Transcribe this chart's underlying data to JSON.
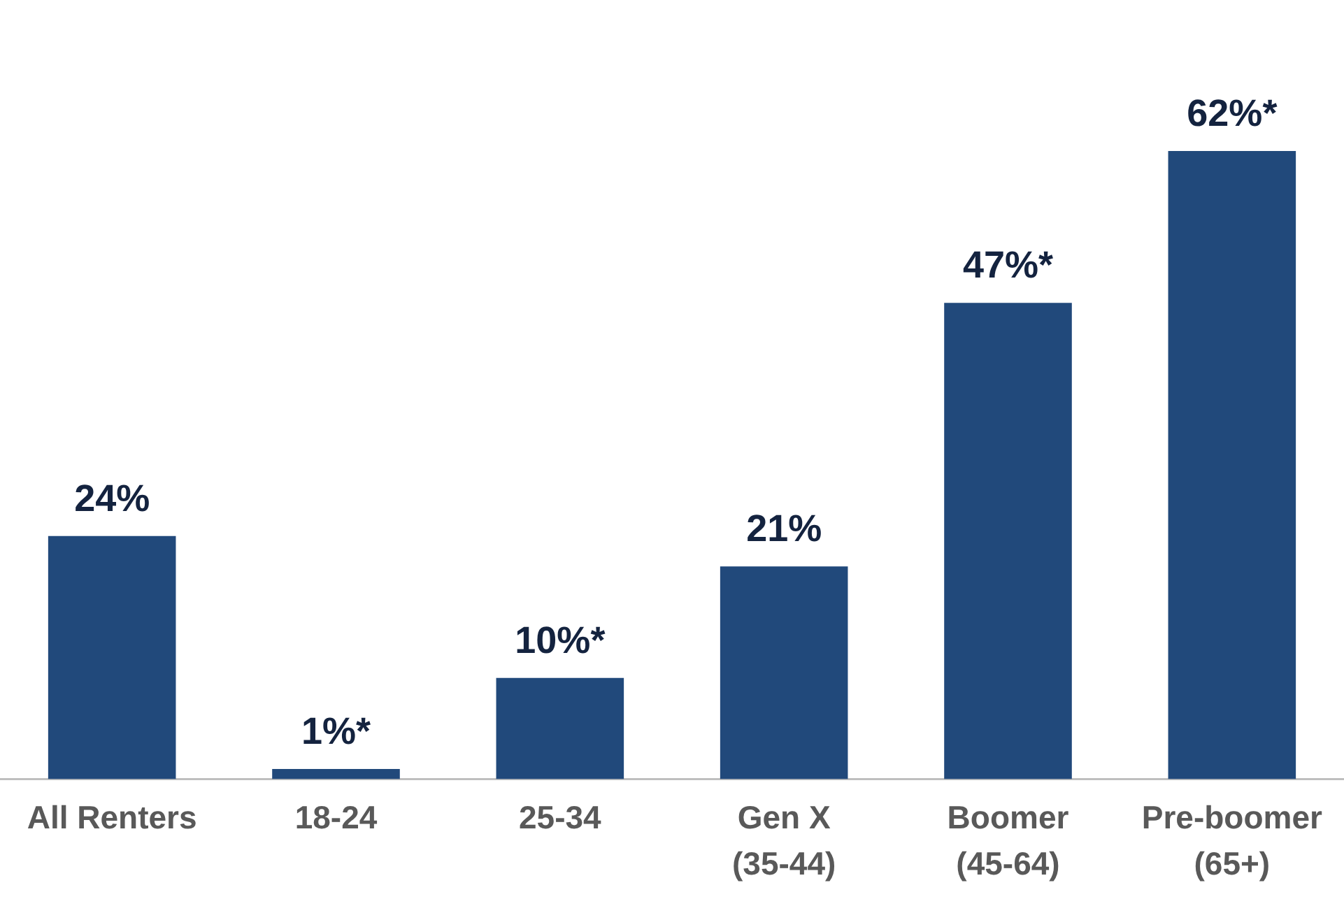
{
  "chart_data": {
    "type": "bar",
    "categories": [
      "All Renters",
      "18-24",
      "25-34",
      "Gen X (35-44)",
      "Boomer (45-64)",
      "Pre-boomer (65+)"
    ],
    "values": [
      24,
      1,
      10,
      21,
      47,
      62
    ],
    "value_labels": [
      "24%",
      "1%*",
      "10%*",
      "21%",
      "47%*",
      "62%*"
    ],
    "color": "#21497b",
    "grid": false,
    "legend": false,
    "tick_labels": "x"
  }
}
